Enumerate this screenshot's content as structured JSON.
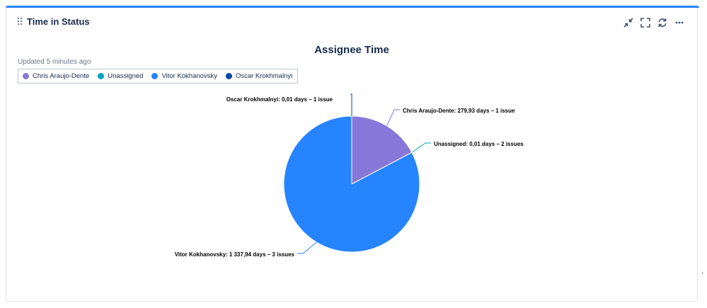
{
  "gadget": {
    "title": "Time in Status",
    "updated": "Updated 5 minutes ago",
    "toolbar": {
      "minimize": "minimize-icon",
      "fullscreen": "fullscreen-icon",
      "refresh": "refresh-icon",
      "more": "more-icon"
    }
  },
  "chart_data": {
    "type": "pie",
    "title": "Assignee Time",
    "slices": [
      {
        "name": "Chris Araujo-Dente",
        "value": 279.93,
        "label": "Chris Araujo-Dente: 279,93 days – 1 issue",
        "color": "#8777d9"
      },
      {
        "name": "Unassigned",
        "value": 0.01,
        "label": "Unassigned: 0,01 days – 2 issues",
        "color": "#00a3bf"
      },
      {
        "name": "Vitor Kokhanovsky",
        "value": 1337.94,
        "label": "Vitor Kokhanovsky: 1 337,94 days – 3 issues",
        "color": "#2684ff"
      },
      {
        "name": "Oscar Krokhmalnyi",
        "value": 0.01,
        "label": "Oscar Krokhmalnyi: 0,01 days – 1 issue",
        "color": "#0747a6"
      }
    ],
    "legend_placement": "top-left",
    "legend": [
      {
        "label": "Chris Araujo-Dente",
        "color": "#8777d9"
      },
      {
        "label": "Unassigned",
        "color": "#00a3bf"
      },
      {
        "label": "Vitor Kokhanovsky",
        "color": "#2684ff"
      },
      {
        "label": "Oscar Krokhmalnyi",
        "color": "#0747a6"
      }
    ]
  },
  "side_arrow": "›"
}
